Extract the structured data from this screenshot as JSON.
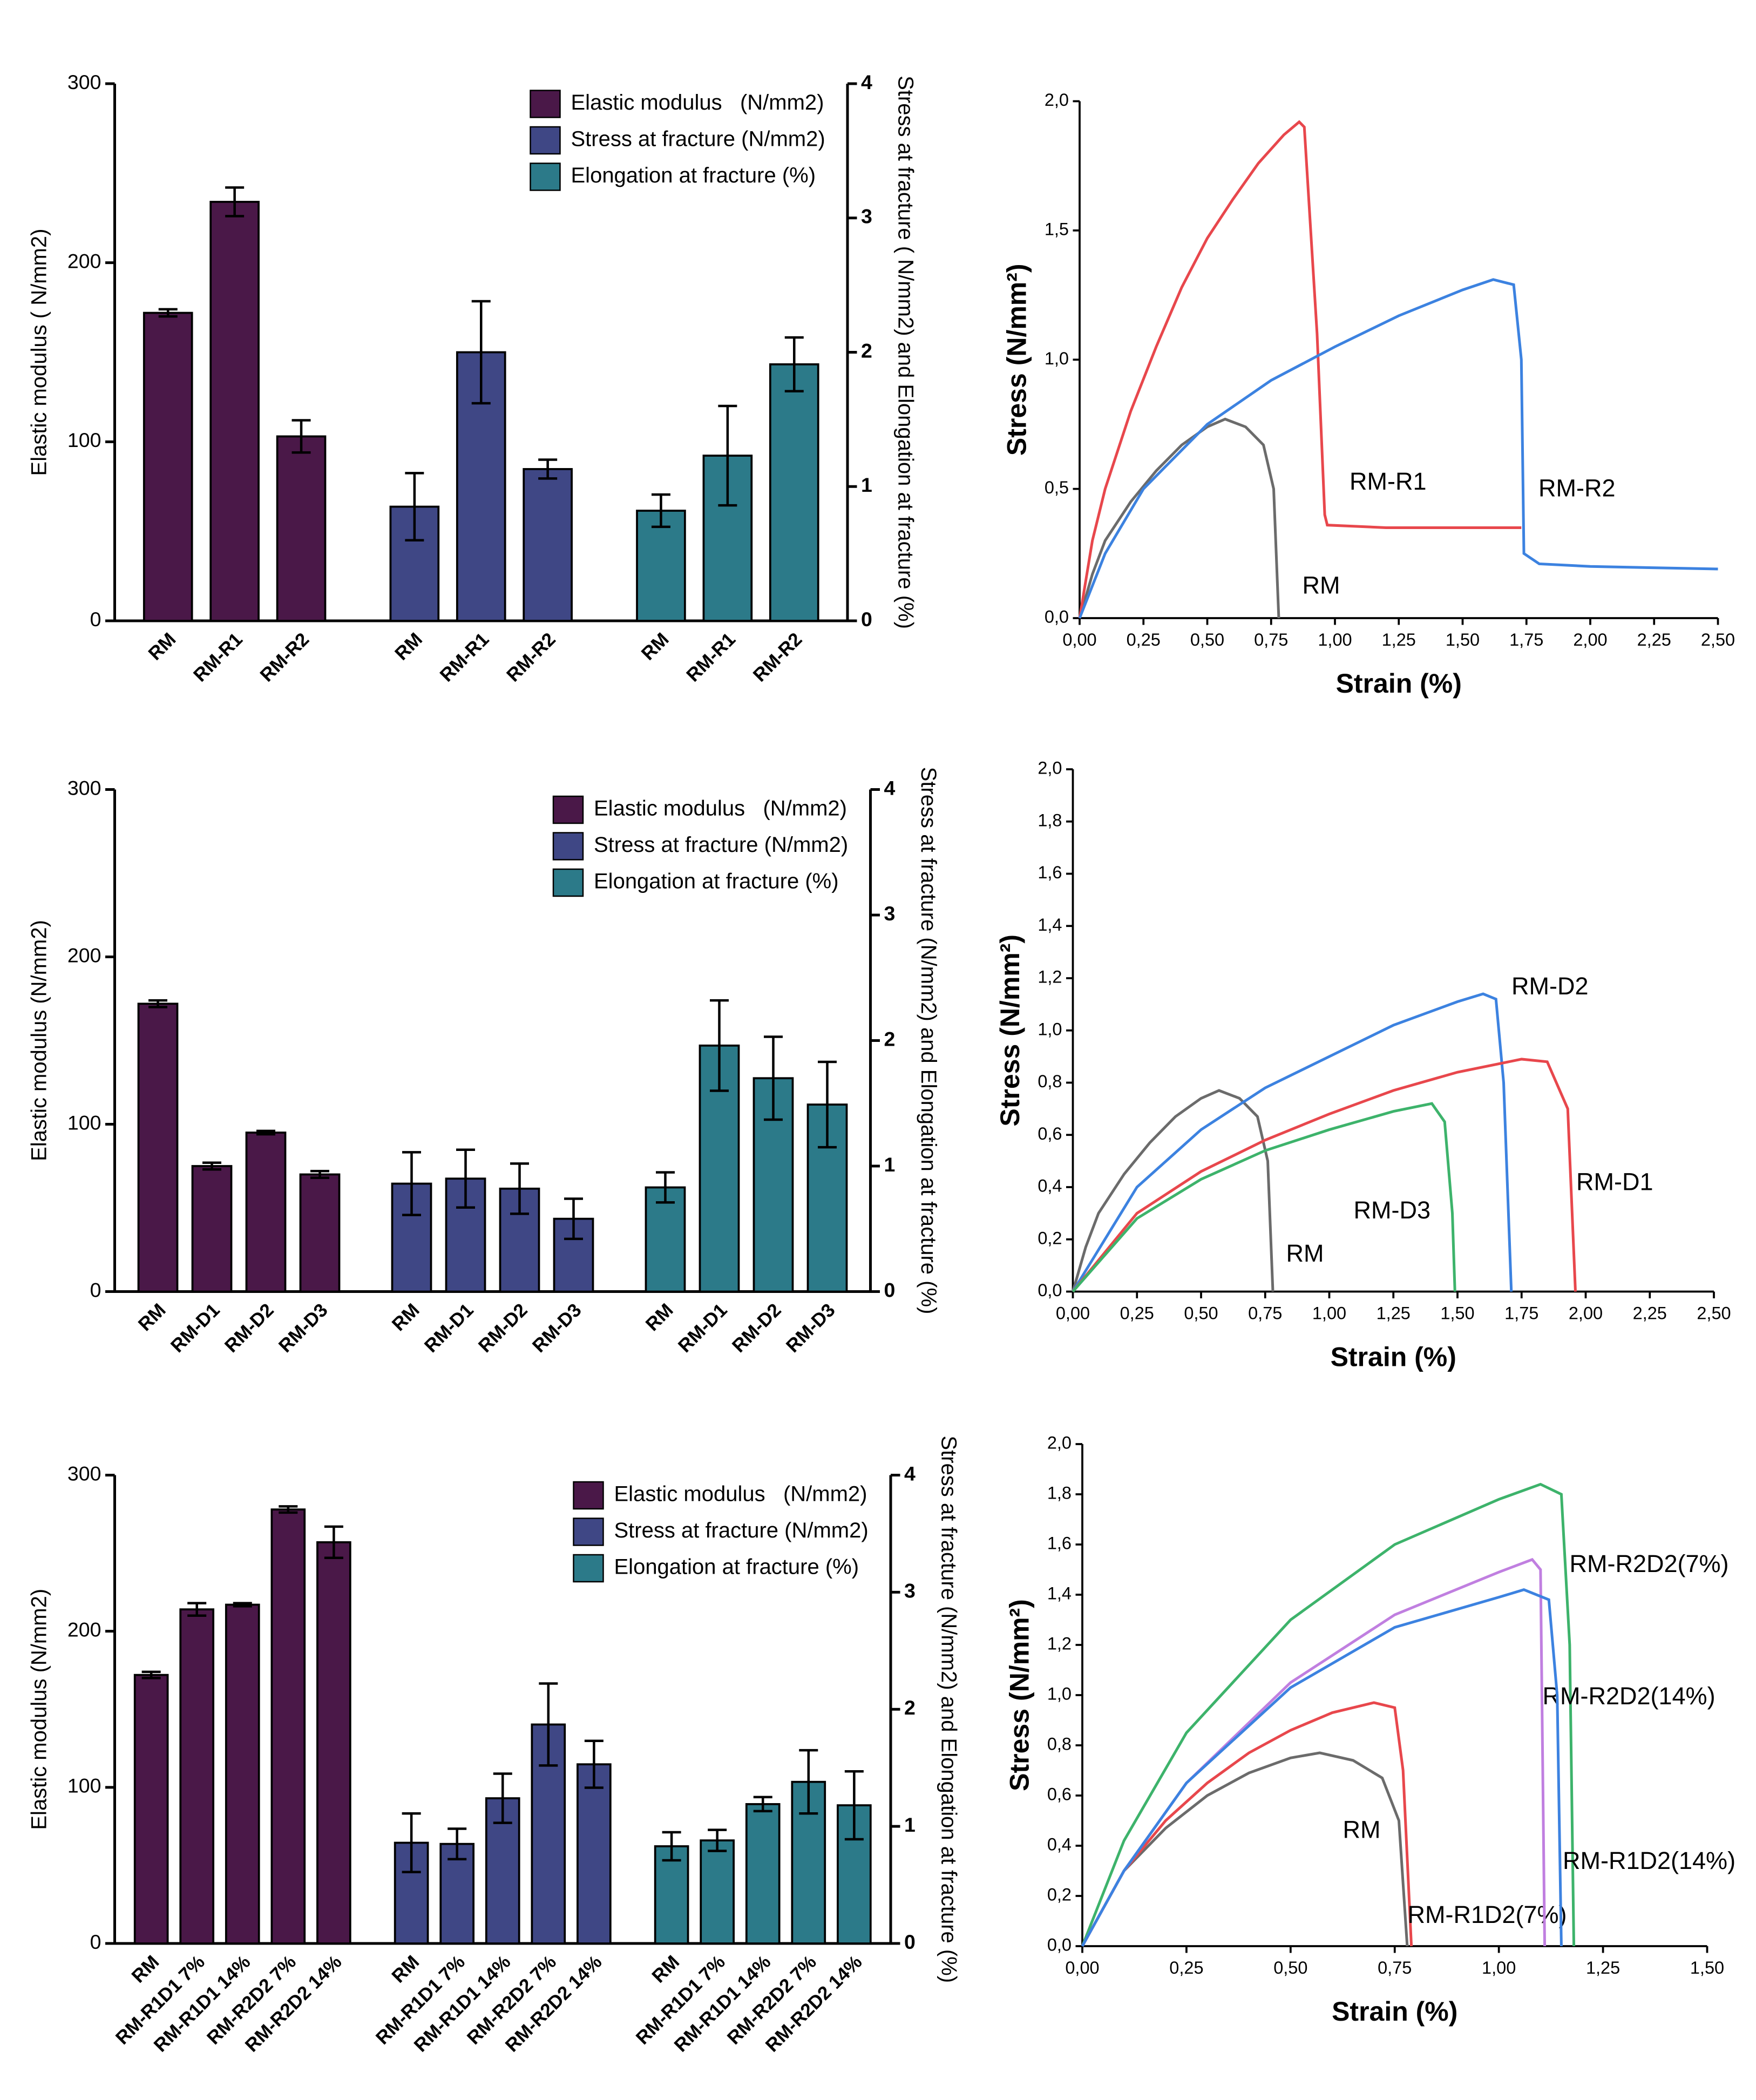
{
  "chart_data": [
    {
      "type": "bar",
      "ylabel": "Elastic modulus ( N/mm2)",
      "y2label": "Stress at fracture ( N/mm2) and Elongation at fracture (%)",
      "categories": [
        "RM",
        "RM-R1",
        "RM-R2",
        "RM",
        "RM-R1",
        "RM-R2",
        "RM",
        "RM-R1",
        "RM-R2"
      ],
      "series": [
        {
          "name": "Elastic modulus   (N/mm2)",
          "color": "#4a1848",
          "axis": "y",
          "values": [
            172,
            234,
            103,
            null,
            null,
            null,
            null,
            null,
            null
          ],
          "errors": [
            2,
            8,
            9,
            null,
            null,
            null,
            null,
            null,
            null
          ]
        },
        {
          "name": "Stress at fracture (N/mm2)",
          "color": "#3f4785",
          "axis": "y2",
          "values": [
            null,
            null,
            null,
            0.85,
            2.0,
            1.13,
            null,
            null,
            null
          ],
          "errors": [
            null,
            null,
            null,
            0.25,
            0.38,
            0.07,
            null,
            null,
            null
          ]
        },
        {
          "name": "Elongation at fracture (%)",
          "color": "#2c7a89",
          "axis": "y2",
          "values": [
            null,
            null,
            null,
            null,
            null,
            null,
            0.82,
            1.23,
            1.91
          ],
          "errors": [
            null,
            null,
            null,
            null,
            null,
            null,
            0.12,
            0.37,
            0.2
          ]
        }
      ],
      "ylim": [
        0,
        300
      ],
      "yticks": [
        0,
        100,
        200,
        300
      ],
      "y2lim": [
        0,
        4
      ],
      "y2ticks": [
        0,
        1,
        2,
        3,
        4
      ],
      "legend": "upper right"
    },
    {
      "type": "line",
      "ylabel": "Stress (N/mm²)",
      "xlabel": "Strain (%)",
      "series": [
        {
          "name": "RM",
          "color": "#6b6b6b",
          "x": [
            0,
            0.05,
            0.1,
            0.2,
            0.3,
            0.4,
            0.5,
            0.57,
            0.65,
            0.72,
            0.76,
            0.78
          ],
          "values": [
            0,
            0.17,
            0.3,
            0.45,
            0.57,
            0.67,
            0.74,
            0.77,
            0.74,
            0.67,
            0.5,
            0
          ]
        },
        {
          "name": "RM-R1",
          "color": "#e8474c",
          "x": [
            0,
            0.05,
            0.1,
            0.2,
            0.3,
            0.4,
            0.5,
            0.6,
            0.7,
            0.8,
            0.86,
            0.88,
            0.93,
            0.96,
            0.97,
            1.2,
            1.73
          ],
          "values": [
            0,
            0.3,
            0.5,
            0.8,
            1.05,
            1.28,
            1.47,
            1.62,
            1.76,
            1.87,
            1.92,
            1.9,
            1.1,
            0.4,
            0.36,
            0.35,
            0.35
          ]
        },
        {
          "name": "RM-R2",
          "color": "#3c82e0",
          "x": [
            0,
            0.1,
            0.25,
            0.5,
            0.75,
            1.0,
            1.25,
            1.5,
            1.62,
            1.7,
            1.73,
            1.74,
            1.8,
            2.0,
            2.5
          ],
          "values": [
            0,
            0.25,
            0.5,
            0.75,
            0.92,
            1.05,
            1.17,
            1.27,
            1.31,
            1.29,
            1.0,
            0.25,
            0.21,
            0.2,
            0.19
          ]
        }
      ],
      "xlim": [
        0,
        2.5
      ],
      "xticks": [
        {
          "value": 0,
          "label": "0,00"
        },
        {
          "value": 0.25,
          "label": "0,25"
        },
        {
          "value": 0.5,
          "label": "0,50"
        },
        {
          "value": 0.75,
          "label": "0,75"
        },
        {
          "value": 1.0,
          "label": "1,00"
        },
        {
          "value": 1.25,
          "label": "1,25"
        },
        {
          "value": 1.5,
          "label": "1,50"
        },
        {
          "value": 1.75,
          "label": "1,75"
        },
        {
          "value": 2.0,
          "label": "2,00"
        },
        {
          "value": 2.25,
          "label": "2,25"
        },
        {
          "value": 2.5,
          "label": "2,50"
        }
      ],
      "ylim": [
        0,
        2.0
      ],
      "yticks": [
        {
          "value": 0,
          "label": "0,0"
        },
        {
          "value": 0.5,
          "label": "0,5"
        },
        {
          "value": 1.0,
          "label": "1,0"
        },
        {
          "value": 1.5,
          "label": "1,5"
        },
        {
          "value": 2.0,
          "label": "2,0"
        }
      ]
    },
    {
      "type": "bar",
      "ylabel": "Elastic modulus (N/mm2)",
      "y2label": "Stress at fracture (N/mm2) and Elongation at fracture (%)",
      "categories": [
        "RM",
        "RM-D1",
        "RM-D2",
        "RM-D3",
        "RM",
        "RM-D1",
        "RM-D2",
        "RM-D3",
        "RM",
        "RM-D1",
        "RM-D2",
        "RM-D3"
      ],
      "series": [
        {
          "name": "Elastic modulus   (N/mm2)",
          "color": "#4a1848",
          "axis": "y",
          "values": [
            172,
            75,
            95,
            70,
            null,
            null,
            null,
            null,
            null,
            null,
            null,
            null
          ],
          "errors": [
            2,
            2,
            1,
            2,
            null,
            null,
            null,
            null,
            null,
            null,
            null,
            null
          ]
        },
        {
          "name": "Stress at fracture (N/mm2)",
          "color": "#3f4785",
          "axis": "y2",
          "values": [
            null,
            null,
            null,
            null,
            0.86,
            0.9,
            0.82,
            0.58,
            null,
            null,
            null,
            null
          ],
          "errors": [
            null,
            null,
            null,
            null,
            0.25,
            0.23,
            0.2,
            0.16,
            null,
            null,
            null,
            null
          ]
        },
        {
          "name": "Elongation at fracture (%)",
          "color": "#2c7a89",
          "axis": "y2",
          "values": [
            null,
            null,
            null,
            null,
            null,
            null,
            null,
            null,
            0.83,
            1.96,
            1.7,
            1.49
          ],
          "errors": [
            null,
            null,
            null,
            null,
            null,
            null,
            null,
            null,
            0.12,
            0.36,
            0.33,
            0.34
          ]
        }
      ],
      "ylim": [
        0,
        300
      ],
      "yticks": [
        0,
        100,
        200,
        300
      ],
      "y2lim": [
        0,
        4
      ],
      "y2ticks": [
        0,
        1,
        2,
        3,
        4
      ],
      "legend": "upper right"
    },
    {
      "type": "line",
      "ylabel": "Stress (N/mm²)",
      "xlabel": "Strain (%)",
      "series": [
        {
          "name": "RM",
          "color": "#6b6b6b",
          "x": [
            0,
            0.05,
            0.1,
            0.2,
            0.3,
            0.4,
            0.5,
            0.57,
            0.65,
            0.72,
            0.76,
            0.78
          ],
          "values": [
            0,
            0.17,
            0.3,
            0.45,
            0.57,
            0.67,
            0.74,
            0.77,
            0.74,
            0.67,
            0.5,
            0
          ]
        },
        {
          "name": "RM-D2",
          "color": "#3c82e0",
          "x": [
            0,
            0.25,
            0.5,
            0.75,
            1.0,
            1.25,
            1.5,
            1.6,
            1.65,
            1.68,
            1.71
          ],
          "values": [
            0,
            0.4,
            0.62,
            0.78,
            0.9,
            1.02,
            1.11,
            1.14,
            1.12,
            0.8,
            0
          ]
        },
        {
          "name": "RM-D1",
          "color": "#e8474c",
          "x": [
            0,
            0.25,
            0.5,
            0.75,
            1.0,
            1.25,
            1.5,
            1.75,
            1.85,
            1.93,
            1.96
          ],
          "values": [
            0,
            0.3,
            0.46,
            0.58,
            0.68,
            0.77,
            0.84,
            0.89,
            0.88,
            0.7,
            0
          ]
        },
        {
          "name": "RM-D3",
          "color": "#3db36b",
          "x": [
            0,
            0.25,
            0.5,
            0.75,
            1.0,
            1.25,
            1.4,
            1.45,
            1.48,
            1.49
          ],
          "values": [
            0,
            0.28,
            0.43,
            0.54,
            0.62,
            0.69,
            0.72,
            0.65,
            0.3,
            0
          ]
        }
      ],
      "xlim": [
        0,
        2.5
      ],
      "xticks": [
        {
          "value": 0,
          "label": "0,00"
        },
        {
          "value": 0.25,
          "label": "0,25"
        },
        {
          "value": 0.5,
          "label": "0,50"
        },
        {
          "value": 0.75,
          "label": "0,75"
        },
        {
          "value": 1.0,
          "label": "1,00"
        },
        {
          "value": 1.25,
          "label": "1,25"
        },
        {
          "value": 1.5,
          "label": "1,50"
        },
        {
          "value": 1.75,
          "label": "1,75"
        },
        {
          "value": 2.0,
          "label": "2,00"
        },
        {
          "value": 2.25,
          "label": "2,25"
        },
        {
          "value": 2.5,
          "label": "2,50"
        }
      ],
      "ylim": [
        0,
        2.0
      ],
      "yticks": [
        {
          "value": 0,
          "label": "0,0"
        },
        {
          "value": 0.2,
          "label": "0,2"
        },
        {
          "value": 0.4,
          "label": "0,4"
        },
        {
          "value": 0.6,
          "label": "0,6"
        },
        {
          "value": 0.8,
          "label": "0,8"
        },
        {
          "value": 1.0,
          "label": "1,0"
        },
        {
          "value": 1.2,
          "label": "1,2"
        },
        {
          "value": 1.4,
          "label": "1,4"
        },
        {
          "value": 1.6,
          "label": "1,6"
        },
        {
          "value": 1.8,
          "label": "1,8"
        },
        {
          "value": 2.0,
          "label": "2,0"
        }
      ]
    },
    {
      "type": "bar",
      "ylabel": "Elastic modulus (N/mm2)",
      "y2label": "Stress at fracture (N/mm2) and Elongation at fracture (%)",
      "categories": [
        "RM",
        "RM-R1D1 7%",
        "RM-R1D1 14%",
        "RM-R2D2 7%",
        "RM-R2D2 14%",
        "RM",
        "RM-R1D1 7%",
        "RM-R1D1 14%",
        "RM-R2D2 7%",
        "RM-R2D2 14%",
        "RM",
        "RM-R1D1 7%",
        "RM-R1D1 14%",
        "RM-R2D2 7%",
        "RM-R2D2 14%"
      ],
      "series": [
        {
          "name": "Elastic modulus   (N/mm2)",
          "color": "#4a1848",
          "axis": "y",
          "values": [
            172,
            214,
            217,
            278,
            257,
            null,
            null,
            null,
            null,
            null,
            null,
            null,
            null,
            null,
            null
          ],
          "errors": [
            2,
            4,
            1,
            2,
            10,
            null,
            null,
            null,
            null,
            null,
            null,
            null,
            null,
            null,
            null
          ]
        },
        {
          "name": "Stress at fracture (N/mm2)",
          "color": "#3f4785",
          "axis": "y2",
          "values": [
            null,
            null,
            null,
            null,
            null,
            0.86,
            0.85,
            1.24,
            1.87,
            1.53,
            null,
            null,
            null,
            null,
            null
          ],
          "errors": [
            null,
            null,
            null,
            null,
            null,
            0.25,
            0.13,
            0.21,
            0.35,
            0.2,
            null,
            null,
            null,
            null,
            null
          ]
        },
        {
          "name": "Elongation at fracture (%)",
          "color": "#2c7a89",
          "axis": "y2",
          "values": [
            null,
            null,
            null,
            null,
            null,
            null,
            null,
            null,
            null,
            null,
            0.83,
            0.88,
            1.19,
            1.38,
            1.18
          ],
          "errors": [
            null,
            null,
            null,
            null,
            null,
            null,
            null,
            null,
            null,
            null,
            0.12,
            0.09,
            0.06,
            0.27,
            0.29
          ]
        }
      ],
      "ylim": [
        0,
        300
      ],
      "yticks": [
        0,
        100,
        200,
        300
      ],
      "y2lim": [
        0,
        4
      ],
      "y2ticks": [
        0,
        1,
        2,
        3,
        4
      ],
      "legend": "upper right"
    },
    {
      "type": "line",
      "ylabel": "Stress (N/mm²)",
      "xlabel": "Strain (%)",
      "series": [
        {
          "name": "RM",
          "color": "#6b6b6b",
          "x": [
            0,
            0.1,
            0.2,
            0.3,
            0.4,
            0.5,
            0.57,
            0.65,
            0.72,
            0.76,
            0.78
          ],
          "values": [
            0,
            0.3,
            0.47,
            0.6,
            0.69,
            0.75,
            0.77,
            0.74,
            0.67,
            0.5,
            0
          ]
        },
        {
          "name": "RM-R1D2(7%)",
          "color": "#e8474c",
          "x": [
            0,
            0.1,
            0.2,
            0.3,
            0.4,
            0.5,
            0.6,
            0.7,
            0.75,
            0.77,
            0.79
          ],
          "values": [
            0,
            0.3,
            0.5,
            0.65,
            0.77,
            0.86,
            0.93,
            0.97,
            0.95,
            0.7,
            0
          ]
        },
        {
          "name": "RM-R2D2(7%)",
          "color": "#3db36b",
          "x": [
            0,
            0.1,
            0.25,
            0.5,
            0.75,
            1.0,
            1.1,
            1.15,
            1.17,
            1.18
          ],
          "values": [
            0,
            0.42,
            0.85,
            1.3,
            1.6,
            1.78,
            1.84,
            1.8,
            1.2,
            0
          ]
        },
        {
          "name": "RM-R2D2(14%)",
          "color": "#c07fe0",
          "x": [
            0,
            0.1,
            0.25,
            0.5,
            0.75,
            1.0,
            1.08,
            1.1,
            1.11
          ],
          "values": [
            0,
            0.3,
            0.65,
            1.05,
            1.32,
            1.49,
            1.54,
            1.5,
            0
          ]
        },
        {
          "name": "RM-R1D2(14%)",
          "color": "#3c82e0",
          "x": [
            0,
            0.1,
            0.25,
            0.5,
            0.75,
            1.0,
            1.06,
            1.12,
            1.14,
            1.15
          ],
          "values": [
            0,
            0.3,
            0.65,
            1.03,
            1.27,
            1.39,
            1.42,
            1.38,
            1.0,
            0
          ]
        }
      ],
      "xlim": [
        0,
        1.5
      ],
      "xticks": [
        {
          "value": 0,
          "label": "0,00"
        },
        {
          "value": 0.25,
          "label": "0,25"
        },
        {
          "value": 0.5,
          "label": "0,50"
        },
        {
          "value": 0.75,
          "label": "0,75"
        },
        {
          "value": 1.0,
          "label": "1,00"
        },
        {
          "value": 1.25,
          "label": "1,25"
        },
        {
          "value": 1.5,
          "label": "1,50"
        }
      ],
      "ylim": [
        0,
        2.0
      ],
      "yticks": [
        {
          "value": 0,
          "label": "0,0"
        },
        {
          "value": 0.2,
          "label": "0,2"
        },
        {
          "value": 0.4,
          "label": "0,4"
        },
        {
          "value": 0.6,
          "label": "0,6"
        },
        {
          "value": 0.8,
          "label": "0,8"
        },
        {
          "value": 1.0,
          "label": "1,0"
        },
        {
          "value": 1.2,
          "label": "1,2"
        },
        {
          "value": 1.4,
          "label": "1,4"
        },
        {
          "value": 1.6,
          "label": "1,6"
        },
        {
          "value": 1.8,
          "label": "1,8"
        },
        {
          "value": 2.0,
          "label": "2,0"
        }
      ]
    }
  ]
}
